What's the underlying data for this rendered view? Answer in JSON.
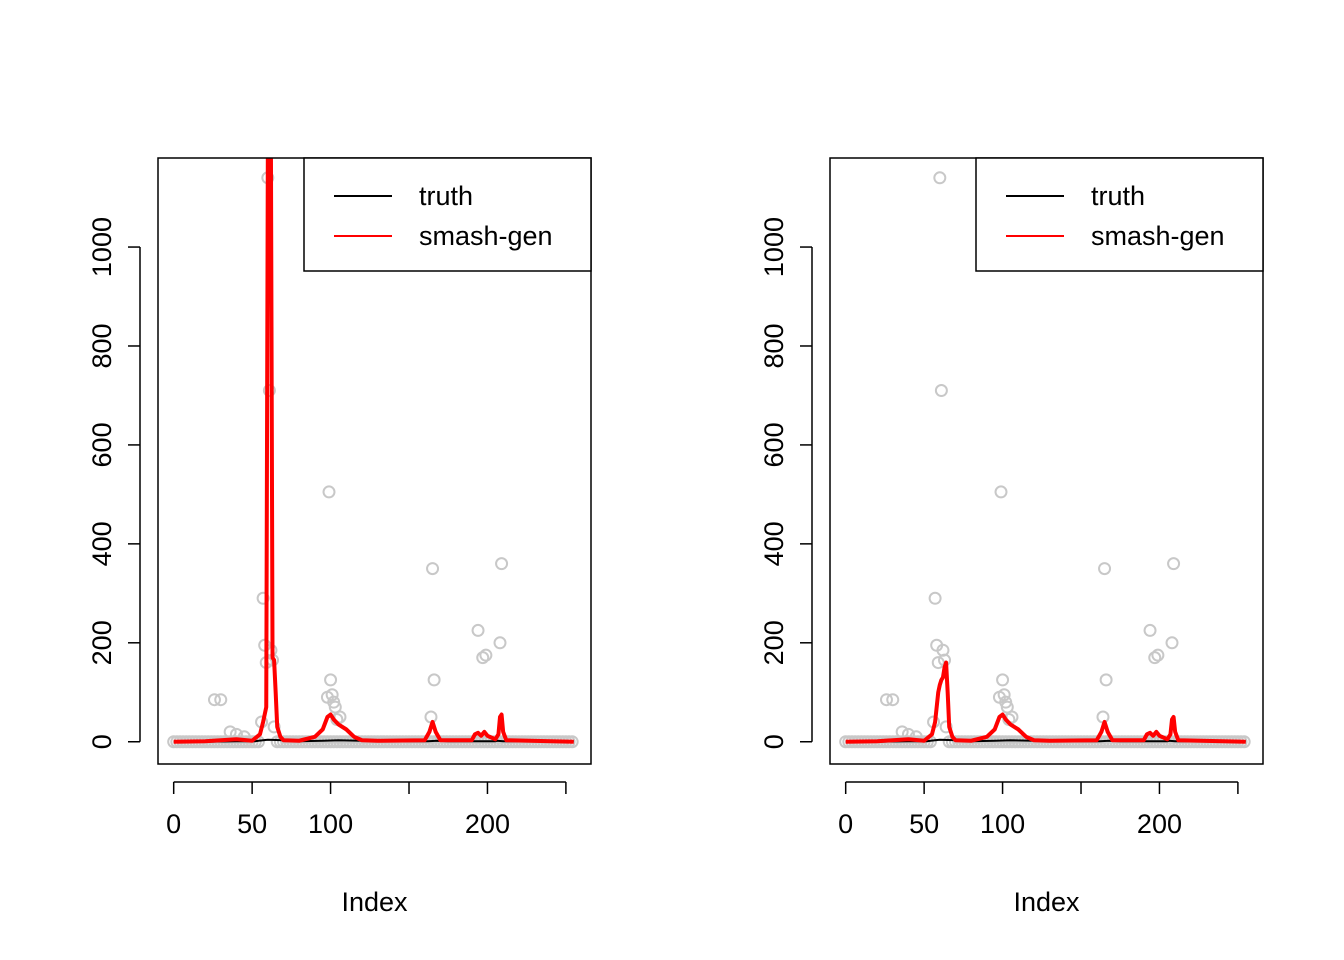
{
  "chart_data": [
    {
      "type": "scatter",
      "title": "",
      "xlabel": "Index",
      "ylabel": "",
      "xlim": [
        -10,
        266
      ],
      "ylim": [
        -45,
        1180
      ],
      "x_ticks": [
        0,
        50,
        100,
        150,
        200,
        250
      ],
      "x_tick_labels": [
        "0",
        "50",
        "100",
        "",
        "200",
        ""
      ],
      "y_ticks": [
        0,
        200,
        400,
        600,
        800,
        1000
      ],
      "y_tick_labels": [
        "0",
        "200",
        "400",
        "600",
        "800",
        "1000"
      ],
      "legend": {
        "position": "top-right",
        "entries": [
          "truth",
          "smash-gen"
        ]
      },
      "colors": {
        "points": "#c8c8c8",
        "truth": "#000000",
        "smash_gen": "#ff0000"
      },
      "points": {
        "x": [
          56,
          57,
          58,
          59,
          60,
          61,
          62,
          63,
          64,
          99,
          100,
          101,
          102,
          98,
          103,
          104,
          106,
          165,
          166,
          164,
          194,
          197,
          199,
          209,
          208,
          26,
          30,
          36,
          40,
          45
        ],
        "y": [
          40,
          290,
          195,
          160,
          1140,
          710,
          185,
          165,
          30,
          505,
          125,
          95,
          80,
          90,
          70,
          45,
          50,
          350,
          125,
          50,
          225,
          170,
          175,
          360,
          200,
          85,
          85,
          20,
          15,
          10
        ]
      },
      "series": [
        {
          "name": "truth",
          "x": [
            0,
            20,
            40,
            52,
            54,
            60,
            70,
            80,
            95,
            105,
            120,
            150,
            160,
            162,
            168,
            175,
            190,
            205,
            206,
            210,
            220,
            255
          ],
          "y": [
            0,
            0,
            1,
            1,
            2,
            4,
            3,
            1,
            2,
            3,
            2,
            1,
            1,
            1,
            2,
            1,
            1,
            1,
            2,
            1,
            1,
            1
          ]
        },
        {
          "name": "smash-gen",
          "x": [
            0,
            20,
            30,
            40,
            50,
            55,
            57,
            59,
            60,
            61,
            62,
            63,
            64,
            65,
            66,
            68,
            70,
            80,
            90,
            95,
            98,
            100,
            102,
            105,
            110,
            115,
            120,
            130,
            160,
            163,
            165,
            167,
            170,
            190,
            192,
            194,
            196,
            198,
            200,
            205,
            207,
            208,
            209,
            210,
            212,
            255
          ],
          "y": [
            0,
            1,
            3,
            5,
            2,
            15,
            40,
            70,
            1180,
            1180,
            1180,
            170,
            165,
            100,
            30,
            10,
            3,
            2,
            10,
            25,
            50,
            55,
            45,
            35,
            25,
            10,
            3,
            2,
            3,
            20,
            40,
            20,
            3,
            3,
            15,
            18,
            12,
            20,
            12,
            5,
            15,
            50,
            55,
            20,
            3,
            0
          ]
        }
      ]
    },
    {
      "type": "scatter",
      "title": "",
      "xlabel": "Index",
      "ylabel": "",
      "xlim": [
        -10,
        266
      ],
      "ylim": [
        -45,
        1180
      ],
      "x_ticks": [
        0,
        50,
        100,
        150,
        200,
        250
      ],
      "x_tick_labels": [
        "0",
        "50",
        "100",
        "",
        "200",
        ""
      ],
      "y_ticks": [
        0,
        200,
        400,
        600,
        800,
        1000
      ],
      "y_tick_labels": [
        "0",
        "200",
        "400",
        "600",
        "800",
        "1000"
      ],
      "legend": {
        "position": "top-right",
        "entries": [
          "truth",
          "smash-gen"
        ]
      },
      "colors": {
        "points": "#c8c8c8",
        "truth": "#000000",
        "smash_gen": "#ff0000"
      },
      "points": {
        "x": [
          56,
          57,
          58,
          59,
          60,
          61,
          62,
          63,
          64,
          99,
          100,
          101,
          102,
          98,
          103,
          104,
          106,
          165,
          166,
          164,
          194,
          197,
          199,
          209,
          208,
          26,
          30,
          36,
          40,
          45
        ],
        "y": [
          40,
          290,
          195,
          160,
          1140,
          710,
          185,
          165,
          30,
          505,
          125,
          95,
          80,
          90,
          70,
          45,
          50,
          350,
          125,
          50,
          225,
          170,
          175,
          360,
          200,
          85,
          85,
          20,
          15,
          10
        ]
      },
      "series": [
        {
          "name": "truth",
          "x": [
            0,
            20,
            40,
            52,
            54,
            60,
            70,
            80,
            95,
            105,
            120,
            150,
            160,
            162,
            168,
            175,
            190,
            205,
            206,
            210,
            220,
            255
          ],
          "y": [
            0,
            0,
            1,
            1,
            2,
            4,
            3,
            1,
            2,
            3,
            2,
            1,
            1,
            1,
            2,
            1,
            1,
            1,
            2,
            1,
            1,
            1
          ]
        },
        {
          "name": "smash-gen",
          "x": [
            0,
            20,
            30,
            40,
            50,
            55,
            57,
            59,
            60,
            61,
            62,
            63,
            64,
            65,
            66,
            68,
            70,
            80,
            90,
            95,
            98,
            100,
            102,
            105,
            110,
            115,
            120,
            130,
            160,
            163,
            165,
            167,
            170,
            190,
            192,
            194,
            196,
            198,
            200,
            205,
            207,
            208,
            209,
            210,
            212,
            255
          ],
          "y": [
            0,
            1,
            3,
            5,
            2,
            15,
            40,
            100,
            115,
            125,
            130,
            150,
            160,
            100,
            30,
            10,
            3,
            2,
            10,
            25,
            50,
            55,
            45,
            35,
            25,
            10,
            3,
            2,
            3,
            20,
            40,
            20,
            3,
            3,
            15,
            18,
            12,
            20,
            12,
            5,
            15,
            45,
            50,
            20,
            3,
            0
          ]
        }
      ]
    }
  ]
}
